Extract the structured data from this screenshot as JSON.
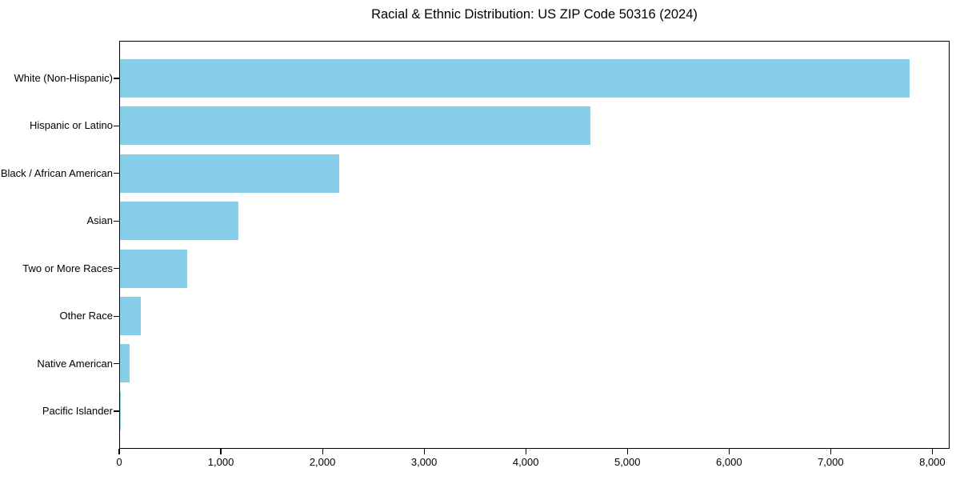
{
  "title": "Racial & Ethnic Distribution: US ZIP Code 50316 (2024)",
  "colors": {
    "bar": "#87CEEB",
    "axis": "#000000",
    "text": "#000000",
    "background": "#ffffff"
  },
  "chart_data": {
    "type": "bar",
    "orientation": "horizontal",
    "title": "Racial & Ethnic Distribution: US ZIP Code 50316 (2024)",
    "xlabel": "",
    "ylabel": "",
    "categories": [
      "White (Non-Hispanic)",
      "Hispanic or Latino",
      "Black / African American",
      "Asian",
      "Two or More Races",
      "Other Race",
      "Native American",
      "Pacific Islander"
    ],
    "values": [
      7770,
      4630,
      2155,
      1165,
      660,
      205,
      95,
      10
    ],
    "xlim": [
      0,
      8170
    ],
    "x_ticks": [
      0,
      1000,
      2000,
      3000,
      4000,
      5000,
      6000,
      7000,
      8000
    ],
    "x_tick_labels": [
      "0",
      "1,000",
      "2,000",
      "3,000",
      "4,000",
      "5,000",
      "6,000",
      "7,000",
      "8,000"
    ],
    "bar_color": "#87CEEB",
    "grid": false,
    "legend": null
  }
}
